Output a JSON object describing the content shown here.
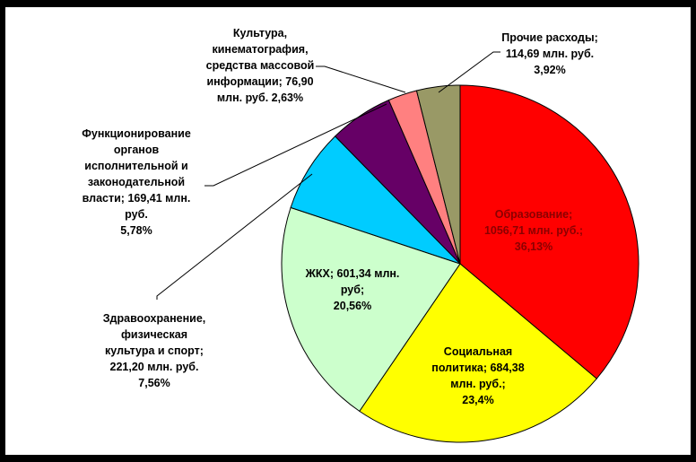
{
  "chart_data": {
    "type": "pie",
    "start": "12 o'clock",
    "direction": "clockwise",
    "legend": "none",
    "slices": [
      {
        "name": "Образование",
        "value": 1056.71,
        "percent": 36.13,
        "color": "#FF0000",
        "label_lines": [
          "Образование;",
          "1056,71 млн. руб.;",
          "36,13%"
        ],
        "label_color": "#8B0000"
      },
      {
        "name": "Социальная политика",
        "value": 684.38,
        "percent": 23.4,
        "color": "#FFFF00",
        "label_lines": [
          "Социальная",
          "политика; 684,38",
          "млн. руб.;",
          "23,4%"
        ],
        "label_color": "#000000"
      },
      {
        "name": "ЖКХ",
        "value": 601.34,
        "percent": 20.56,
        "color": "#CCFFCC",
        "label_lines": [
          "ЖКХ; 601,34 млн.",
          "руб;",
          "20,56%"
        ],
        "label_color": "#000000"
      },
      {
        "name": "Здравоохранение, физическая культура и спорт",
        "value": 221.2,
        "percent": 7.56,
        "color": "#00CCFF",
        "label_lines": [
          "Здравоохранение,",
          "физическая",
          "культура и спорт;",
          "221,20 млн. руб.",
          "7,56%"
        ],
        "label_color": "#000000"
      },
      {
        "name": "Функционирование органов исполнительной и законодательной власти",
        "value": 169.41,
        "percent": 5.78,
        "color": "#660066",
        "label_lines": [
          "Функционирование",
          "органов",
          "исполнительной и",
          "законодательной",
          "власти; 169,41 млн.",
          "руб.",
          "5,78%"
        ],
        "label_color": "#000000"
      },
      {
        "name": "Культура, кинематография, средства массовой информации",
        "value": 76.9,
        "percent": 2.63,
        "color": "#FF8080",
        "label_lines": [
          "Культура,",
          "кинематография,",
          "средства массовой",
          "информации; 76,90",
          "млн. руб. 2,63%"
        ],
        "label_color": "#000000"
      },
      {
        "name": "Прочие расходы",
        "value": 114.69,
        "percent": 3.92,
        "color": "#999966",
        "label_lines": [
          "Прочие расходы;",
          "114,69 млн. руб.",
          "3,92%"
        ],
        "label_color": "#000000"
      }
    ]
  }
}
